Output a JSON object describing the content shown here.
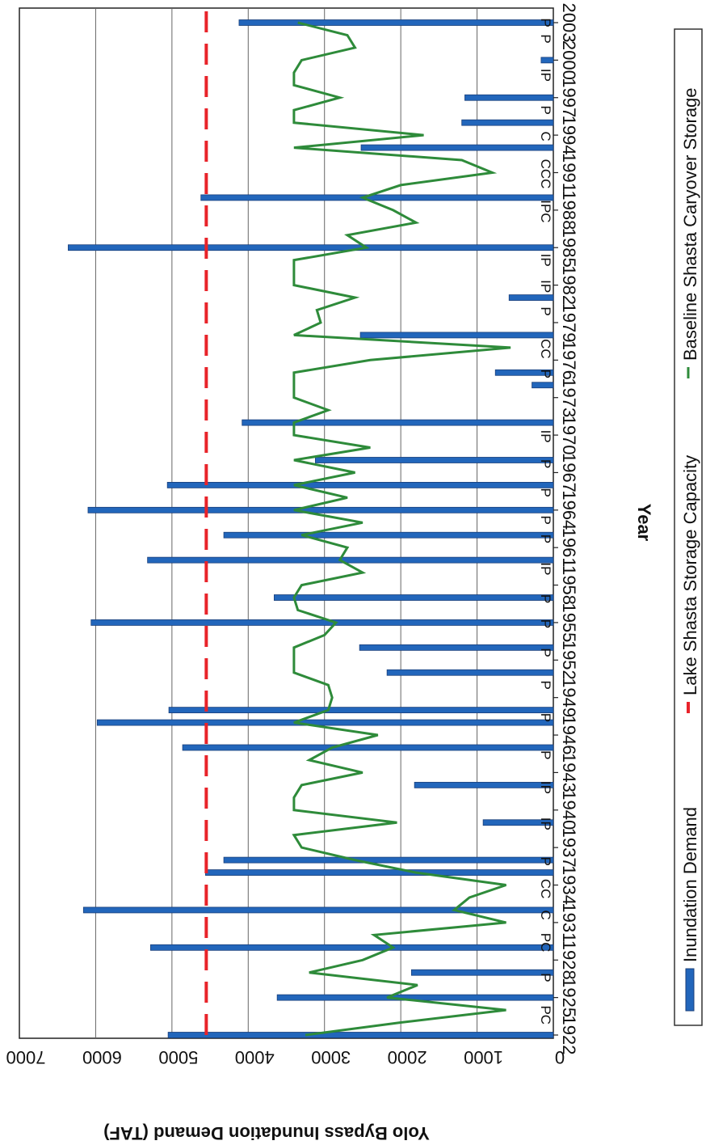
{
  "chart_data": {
    "type": "bar",
    "xlabel": "Year",
    "ylabel": "Yolo Bypass Inundation Demand (TAF)",
    "ylim": [
      0,
      7000
    ],
    "yticks": [
      0,
      1000,
      2000,
      3000,
      4000,
      5000,
      6000,
      7000
    ],
    "year_range": [
      1922,
      2003
    ],
    "year_tick_labels": [
      "1922",
      "1925",
      "1928",
      "1931",
      "1934",
      "1937",
      "1940",
      "1943",
      "1946",
      "1949",
      "1952",
      "1955",
      "1958",
      "1961",
      "1964",
      "1967",
      "1970",
      "1973",
      "1976",
      "1979",
      "1982",
      "1985",
      "1988",
      "1991",
      "1994",
      "1997",
      "2000",
      "2003"
    ],
    "grid": true,
    "rotated": "90deg-clockwise",
    "legend": {
      "position": "right",
      "entries": [
        {
          "label": "Inundation Demand",
          "color": "#2266bb",
          "style": "bar"
        },
        {
          "label": "Lake Shasta Storage Capacity",
          "color": "#e8232a",
          "style": "dashed-line"
        },
        {
          "label": "Baseline Shasta Caryover Storage",
          "color": "#2e8b3a",
          "style": "line"
        }
      ]
    },
    "capacity": 4550,
    "series": [
      {
        "name": "Inundation Demand",
        "color": "#2266bb",
        "points": [
          {
            "year": 1922,
            "value": 5050
          },
          {
            "year": 1925,
            "value": 3620
          },
          {
            "year": 1927,
            "value": 1860
          },
          {
            "year": 1929,
            "value": 5280
          },
          {
            "year": 1932,
            "value": 6160
          },
          {
            "year": 1935,
            "value": 4560
          },
          {
            "year": 1936,
            "value": 4320
          },
          {
            "year": 1939,
            "value": 920
          },
          {
            "year": 1942,
            "value": 1820
          },
          {
            "year": 1945,
            "value": 4860
          },
          {
            "year": 1947,
            "value": 5980
          },
          {
            "year": 1948,
            "value": 5040
          },
          {
            "year": 1951,
            "value": 2180
          },
          {
            "year": 1953,
            "value": 2540
          },
          {
            "year": 1955,
            "value": 6060
          },
          {
            "year": 1957,
            "value": 3660
          },
          {
            "year": 1960,
            "value": 5320
          },
          {
            "year": 1962,
            "value": 4320
          },
          {
            "year": 1964,
            "value": 6100
          },
          {
            "year": 1966,
            "value": 5060
          },
          {
            "year": 1968,
            "value": 3120
          },
          {
            "year": 1971,
            "value": 4080
          },
          {
            "year": 1974,
            "value": 280
          },
          {
            "year": 1975,
            "value": 760
          },
          {
            "year": 1978,
            "value": 2530
          },
          {
            "year": 1981,
            "value": 580
          },
          {
            "year": 1985,
            "value": 6360
          },
          {
            "year": 1989,
            "value": 4620
          },
          {
            "year": 1993,
            "value": 2520
          },
          {
            "year": 1995,
            "value": 1200
          },
          {
            "year": 1997,
            "value": 1160
          },
          {
            "year": 2000,
            "value": 160
          },
          {
            "year": 2003,
            "value": 4120
          }
        ]
      },
      {
        "name": "Baseline Shasta Caryover Storage",
        "color": "#2e8b3a",
        "points": [
          {
            "year": 1922,
            "value": 3250
          },
          {
            "year": 1923,
            "value": 2000
          },
          {
            "year": 1924,
            "value": 620
          },
          {
            "year": 1925,
            "value": 2180
          },
          {
            "year": 1926,
            "value": 1780
          },
          {
            "year": 1927,
            "value": 3200
          },
          {
            "year": 1928,
            "value": 2500
          },
          {
            "year": 1929,
            "value": 2100
          },
          {
            "year": 1930,
            "value": 2350
          },
          {
            "year": 1931,
            "value": 620
          },
          {
            "year": 1932,
            "value": 1300
          },
          {
            "year": 1933,
            "value": 1100
          },
          {
            "year": 1934,
            "value": 620
          },
          {
            "year": 1935,
            "value": 1800
          },
          {
            "year": 1936,
            "value": 2600
          },
          {
            "year": 1937,
            "value": 3300
          },
          {
            "year": 1938,
            "value": 3400
          },
          {
            "year": 1939,
            "value": 2050
          },
          {
            "year": 1940,
            "value": 3400
          },
          {
            "year": 1941,
            "value": 3400
          },
          {
            "year": 1942,
            "value": 3300
          },
          {
            "year": 1943,
            "value": 2500
          },
          {
            "year": 1944,
            "value": 3200
          },
          {
            "year": 1945,
            "value": 2900
          },
          {
            "year": 1946,
            "value": 2300
          },
          {
            "year": 1947,
            "value": 3400
          },
          {
            "year": 1948,
            "value": 2950
          },
          {
            "year": 1949,
            "value": 2900
          },
          {
            "year": 1950,
            "value": 2950
          },
          {
            "year": 1951,
            "value": 3400
          },
          {
            "year": 1952,
            "value": 3400
          },
          {
            "year": 1953,
            "value": 3400
          },
          {
            "year": 1954,
            "value": 3000
          },
          {
            "year": 1955,
            "value": 2850
          },
          {
            "year": 1956,
            "value": 3350
          },
          {
            "year": 1957,
            "value": 3400
          },
          {
            "year": 1958,
            "value": 3300
          },
          {
            "year": 1959,
            "value": 2500
          },
          {
            "year": 1960,
            "value": 2800
          },
          {
            "year": 1961,
            "value": 2700
          },
          {
            "year": 1962,
            "value": 3300
          },
          {
            "year": 1963,
            "value": 2500
          },
          {
            "year": 1964,
            "value": 3400
          },
          {
            "year": 1965,
            "value": 2700
          },
          {
            "year": 1966,
            "value": 3400
          },
          {
            "year": 1967,
            "value": 2600
          },
          {
            "year": 1968,
            "value": 3400
          },
          {
            "year": 1969,
            "value": 2400
          },
          {
            "year": 1970,
            "value": 3400
          },
          {
            "year": 1971,
            "value": 3400
          },
          {
            "year": 1972,
            "value": 2950
          },
          {
            "year": 1973,
            "value": 3400
          },
          {
            "year": 1974,
            "value": 3400
          },
          {
            "year": 1975,
            "value": 3400
          },
          {
            "year": 1976,
            "value": 2400
          },
          {
            "year": 1977,
            "value": 560
          },
          {
            "year": 1978,
            "value": 3400
          },
          {
            "year": 1979,
            "value": 3050
          },
          {
            "year": 1980,
            "value": 3100
          },
          {
            "year": 1981,
            "value": 2600
          },
          {
            "year": 1982,
            "value": 3400
          },
          {
            "year": 1983,
            "value": 3400
          },
          {
            "year": 1984,
            "value": 3400
          },
          {
            "year": 1985,
            "value": 2450
          },
          {
            "year": 1986,
            "value": 2700
          },
          {
            "year": 1987,
            "value": 1800
          },
          {
            "year": 1988,
            "value": 2100
          },
          {
            "year": 1989,
            "value": 2500
          },
          {
            "year": 1990,
            "value": 2000
          },
          {
            "year": 1991,
            "value": 800
          },
          {
            "year": 1992,
            "value": 1200
          },
          {
            "year": 1993,
            "value": 3400
          },
          {
            "year": 1994,
            "value": 1700
          },
          {
            "year": 1995,
            "value": 3400
          },
          {
            "year": 1996,
            "value": 3400
          },
          {
            "year": 1997,
            "value": 2800
          },
          {
            "year": 1998,
            "value": 3400
          },
          {
            "year": 1999,
            "value": 3400
          },
          {
            "year": 2000,
            "value": 3300
          },
          {
            "year": 2001,
            "value": 2600
          },
          {
            "year": 2002,
            "value": 2700
          },
          {
            "year": 2003,
            "value": 3350
          }
        ]
      }
    ],
    "annotations": [
      {
        "year": 1923.6,
        "text": "PC"
      },
      {
        "year": 1926.6,
        "text": "P"
      },
      {
        "year": 1929.4,
        "text": "PC"
      },
      {
        "year": 1931.6,
        "text": "C"
      },
      {
        "year": 1933.7,
        "text": "CC"
      },
      {
        "year": 1935.9,
        "text": "P"
      },
      {
        "year": 1938.9,
        "text": "IP"
      },
      {
        "year": 1941.8,
        "text": "IP"
      },
      {
        "year": 1944.4,
        "text": "P"
      },
      {
        "year": 1947.4,
        "text": "P"
      },
      {
        "year": 1950.0,
        "text": "P"
      },
      {
        "year": 1952.6,
        "text": "P"
      },
      {
        "year": 1954.9,
        "text": "P"
      },
      {
        "year": 1956.9,
        "text": "P"
      },
      {
        "year": 1959.3,
        "text": "IP"
      },
      {
        "year": 1961.7,
        "text": "P"
      },
      {
        "year": 1963.2,
        "text": "P"
      },
      {
        "year": 1965.4,
        "text": "P"
      },
      {
        "year": 1967.7,
        "text": "P"
      },
      {
        "year": 1969.9,
        "text": "IP"
      },
      {
        "year": 1974.9,
        "text": "P"
      },
      {
        "year": 1976.9,
        "text": "CC"
      },
      {
        "year": 1979.9,
        "text": "P"
      },
      {
        "year": 1981.9,
        "text": "IP"
      },
      {
        "year": 1984.0,
        "text": "IP"
      },
      {
        "year": 1987.9,
        "text": "IPC"
      },
      {
        "year": 1990.9,
        "text": "CCC"
      },
      {
        "year": 1993.9,
        "text": "C"
      },
      {
        "year": 1996.0,
        "text": "P"
      },
      {
        "year": 1998.8,
        "text": "IP"
      },
      {
        "year": 2001.7,
        "text": "P"
      },
      {
        "year": 2003.0,
        "text": "P"
      }
    ]
  }
}
